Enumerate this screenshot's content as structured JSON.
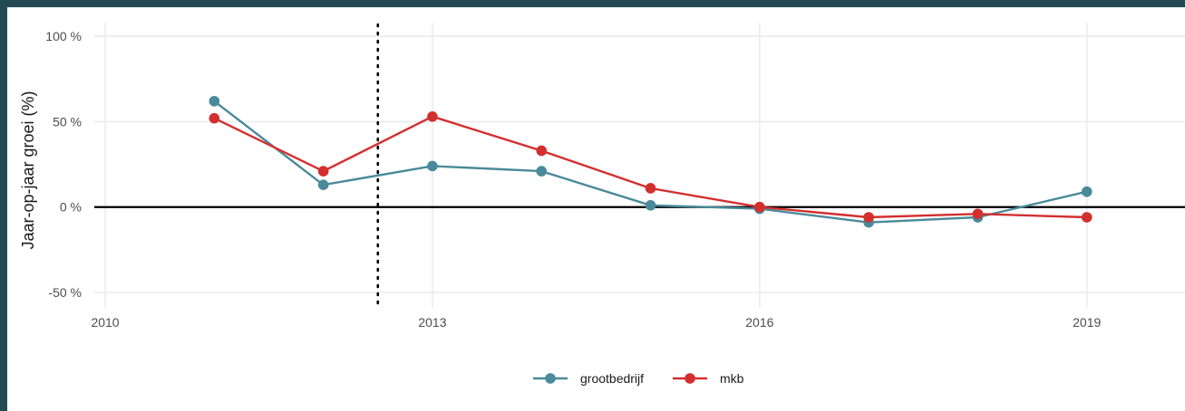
{
  "chart_data": {
    "type": "line",
    "title": "",
    "xlabel": "",
    "ylabel": "Jaar-op-jaar groei (%)",
    "xlim": [
      2009.9,
      2019.9
    ],
    "ylim": [
      -59,
      108
    ],
    "x_ticks": [
      2010,
      2013,
      2016,
      2019
    ],
    "x_tick_labels": [
      "2010",
      "2013",
      "2016",
      "2019"
    ],
    "y_ticks": [
      -50,
      0,
      50,
      100
    ],
    "y_tick_labels": [
      "-50 %",
      "0 %",
      "50 %",
      "100 %"
    ],
    "grid": true,
    "legend_position": "bottom",
    "reference_lines": [
      {
        "type": "horizontal",
        "y": 0,
        "style": "solid",
        "color": "#000000"
      },
      {
        "type": "vertical",
        "x": 2012.5,
        "style": "dotted",
        "color": "#000000"
      }
    ],
    "x": [
      2011,
      2012,
      2013,
      2014,
      2015,
      2016,
      2017,
      2018,
      2019
    ],
    "series": [
      {
        "name": "grootbedrijf",
        "color": "#4a8a9a",
        "values": [
          62,
          13,
          24,
          21,
          1,
          -1,
          -9,
          -6,
          9
        ]
      },
      {
        "name": "mkb",
        "color": "#d32f2f",
        "values": [
          52,
          21,
          53,
          33,
          11,
          0,
          -6,
          -4,
          -6
        ]
      }
    ]
  }
}
